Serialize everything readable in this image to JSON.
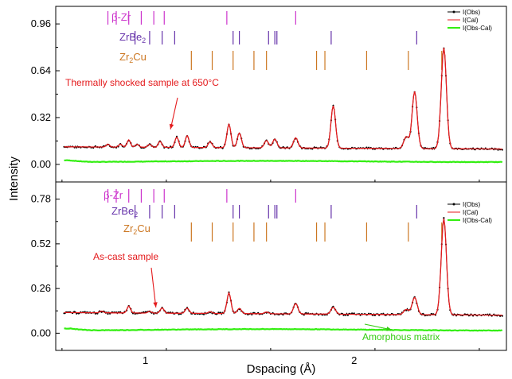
{
  "chart_data": [
    {
      "type": "line",
      "panel": "top",
      "ylim": [
        -0.12,
        1.08
      ],
      "yticks": [
        0.0,
        0.32,
        0.64,
        0.96
      ],
      "ytick_labels": [
        "0.00",
        "0.32",
        "0.64",
        "0.96"
      ],
      "series": [
        {
          "name": "I(Obs)",
          "color": "#000000"
        },
        {
          "name": "I(Cal)",
          "color": "#e41a1c"
        },
        {
          "name": "I(Obs-Cal)",
          "color": "#33ee11"
        }
      ],
      "baseline": 0.12,
      "residual_level": 0.02,
      "peaks": [
        {
          "x": 0.82,
          "y": 0.14
        },
        {
          "x": 0.88,
          "y": 0.14
        },
        {
          "x": 0.92,
          "y": 0.17
        },
        {
          "x": 0.96,
          "y": 0.14
        },
        {
          "x": 1.02,
          "y": 0.14
        },
        {
          "x": 1.07,
          "y": 0.16
        },
        {
          "x": 1.15,
          "y": 0.19
        },
        {
          "x": 1.2,
          "y": 0.2
        },
        {
          "x": 1.31,
          "y": 0.16
        },
        {
          "x": 1.4,
          "y": 0.28
        },
        {
          "x": 1.45,
          "y": 0.22
        },
        {
          "x": 1.58,
          "y": 0.17
        },
        {
          "x": 1.62,
          "y": 0.18
        },
        {
          "x": 1.72,
          "y": 0.19
        },
        {
          "x": 1.9,
          "y": 0.41
        },
        {
          "x": 2.25,
          "y": 0.2
        },
        {
          "x": 2.29,
          "y": 0.51
        },
        {
          "x": 2.43,
          "y": 0.81
        }
      ],
      "phases": [
        {
          "label": "β-Zr",
          "color": "#cc33cc",
          "positions": [
            0.82,
            0.86,
            0.92,
            0.98,
            1.04,
            1.09,
            1.39,
            1.72
          ]
        },
        {
          "label": "ZrBe2",
          "color": "#6633aa",
          "positions": [
            0.95,
            1.02,
            1.08,
            1.14,
            1.42,
            1.45,
            1.59,
            1.62,
            1.63,
            1.89,
            2.3
          ]
        },
        {
          "label": "Zr2Cu",
          "color": "#cc7722",
          "positions": [
            1.22,
            1.32,
            1.42,
            1.52,
            1.58,
            1.82,
            1.86,
            2.06,
            2.26,
            2.42
          ]
        }
      ],
      "annotation": {
        "text": "Thermally shocked sample at 650°C",
        "color": "#e41a1c",
        "arrow_to": {
          "x": 1.12,
          "y": 0.24
        }
      }
    },
    {
      "type": "line",
      "panel": "bottom",
      "ylim": [
        -0.1,
        0.88
      ],
      "yticks": [
        0.0,
        0.26,
        0.52,
        0.78
      ],
      "ytick_labels": [
        "0.00",
        "0.26",
        "0.52",
        "0.78"
      ],
      "series": [
        {
          "name": "I(Obs)",
          "color": "#000000"
        },
        {
          "name": "I(Cal)",
          "color": "#e41a1c"
        },
        {
          "name": "I(Obs-Cal)",
          "color": "#33ee11"
        }
      ],
      "baseline": 0.12,
      "residual_level": 0.02,
      "peaks": [
        {
          "x": 0.79,
          "y": 0.13
        },
        {
          "x": 0.92,
          "y": 0.16
        },
        {
          "x": 1.02,
          "y": 0.13
        },
        {
          "x": 1.08,
          "y": 0.15
        },
        {
          "x": 1.2,
          "y": 0.15
        },
        {
          "x": 1.31,
          "y": 0.13
        },
        {
          "x": 1.4,
          "y": 0.24
        },
        {
          "x": 1.45,
          "y": 0.15
        },
        {
          "x": 1.58,
          "y": 0.13
        },
        {
          "x": 1.72,
          "y": 0.18
        },
        {
          "x": 1.9,
          "y": 0.16
        },
        {
          "x": 2.25,
          "y": 0.15
        },
        {
          "x": 2.29,
          "y": 0.22
        },
        {
          "x": 2.43,
          "y": 0.68
        }
      ],
      "phases": [
        {
          "label": "β-Zr",
          "color": "#cc33cc",
          "positions": [
            0.82,
            0.86,
            0.92,
            0.98,
            1.04,
            1.09,
            1.39,
            1.72
          ]
        },
        {
          "label": "ZrBe2",
          "color": "#6633aa",
          "positions": [
            0.95,
            1.02,
            1.08,
            1.14,
            1.42,
            1.45,
            1.59,
            1.62,
            1.63,
            1.89,
            2.3
          ]
        },
        {
          "label": "Zr2Cu",
          "color": "#cc7722",
          "positions": [
            1.22,
            1.32,
            1.42,
            1.52,
            1.58,
            1.82,
            1.86,
            2.06,
            2.26,
            2.42
          ]
        }
      ],
      "annotation": {
        "text": "As-cast sample",
        "color": "#e41a1c",
        "arrow_to": {
          "x": 1.05,
          "y": 0.15
        }
      },
      "annotation2": {
        "text": "Amorphous matrix",
        "color": "#33cc11",
        "arrow_to": {
          "x": 2.18,
          "y": 0.02
        }
      }
    }
  ],
  "shared_axes": {
    "xlim": [
      0.57,
      2.73
    ],
    "xticks": [
      1,
      2
    ],
    "xtick_labels": [
      "1",
      "2"
    ],
    "xlabel": "Dspacing (Å)",
    "ylabel": "Intensity"
  }
}
